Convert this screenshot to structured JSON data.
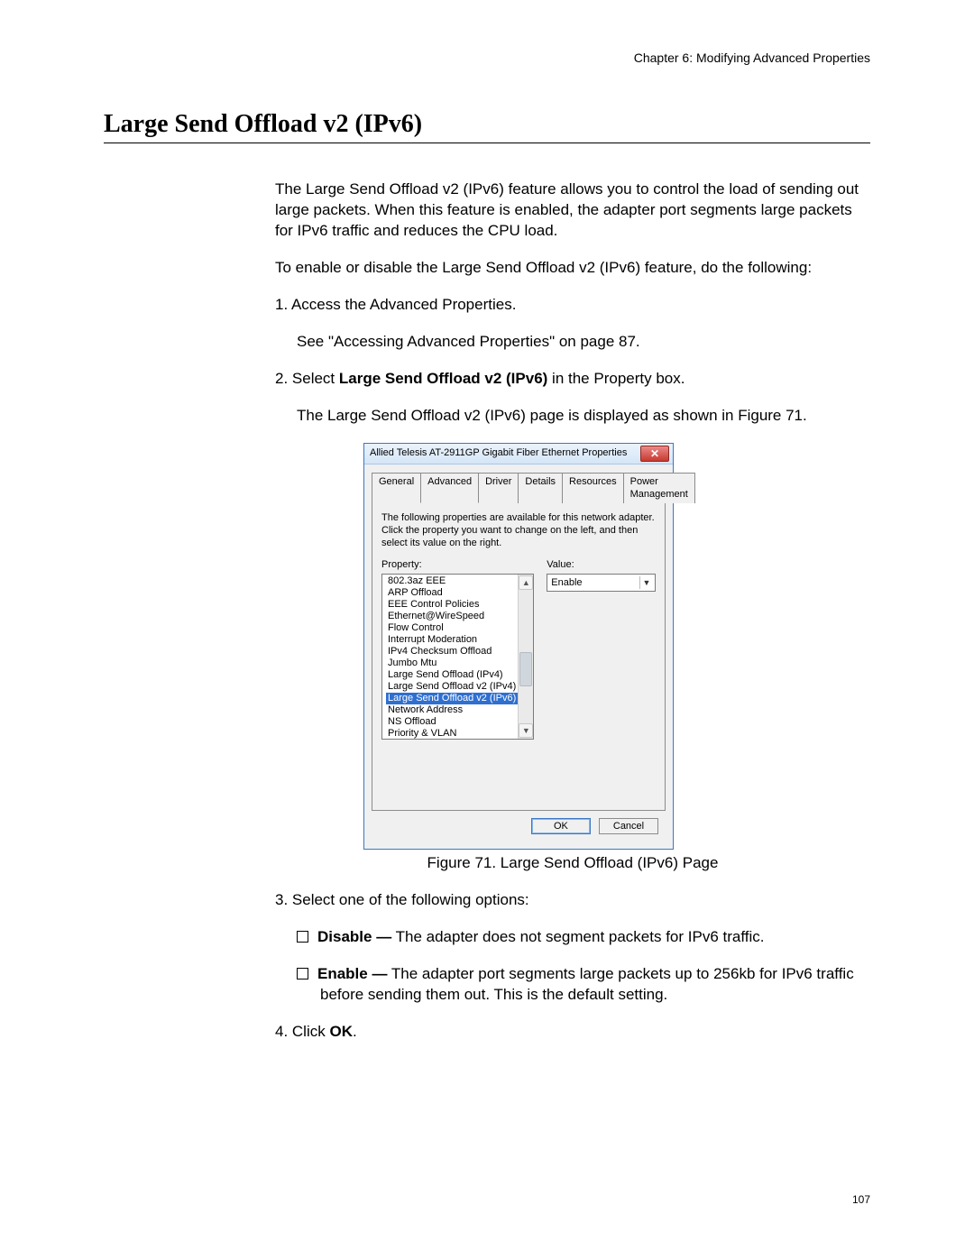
{
  "chapter_header": "Chapter 6: Modifying Advanced Properties",
  "section_title": "Large Send Offload v2 (IPv6)",
  "intro": "The Large Send Offload v2 (IPv6) feature allows you to control the load of sending out large packets. When this feature is enabled, the adapter port segments large packets for IPv6 traffic and reduces the CPU load.",
  "lead_in": "To enable or disable the Large Send Offload v2 (IPv6) feature, do the following:",
  "step1_text": "1.  Access the Advanced Properties.",
  "step1_ref": "See \"Accessing Advanced Properties\" on page 87.",
  "step2_pre": "2.  Select ",
  "step2_bold": "Large Send Offload v2 (IPv6)",
  "step2_post": " in the Property box.",
  "step2_result": "The Large Send Offload v2 (IPv6) page is displayed as shown in Figure 71.",
  "figure_caption": "Figure 71. Large Send Offload (IPv6) Page",
  "step3_text": "3.  Select one of the following options:",
  "opt_disable_label": "Disable —",
  "opt_disable_text": " The adapter does not segment packets for IPv6 traffic.",
  "opt_enable_label": "Enable —",
  "opt_enable_text": " The adapter port segments large packets up to 256kb for IPv6 traffic before sending them out. This is the default setting.",
  "step4_pre": "4.  Click ",
  "step4_bold": "OK",
  "step4_post": ".",
  "page_number": "107",
  "dialog": {
    "title": "Allied Telesis AT-2911GP Gigabit Fiber Ethernet Properties",
    "close_glyph": "✕",
    "tabs": {
      "t0": "General",
      "t1": "Advanced",
      "t2": "Driver",
      "t3": "Details",
      "t4": "Resources",
      "t5": "Power Management"
    },
    "description": "The following properties are available for this network adapter. Click the property you want to change on the left, and then select its value on the right.",
    "property_label": "Property:",
    "value_label": "Value:",
    "selected_value": "Enable",
    "properties": {
      "p0": "802.3az EEE",
      "p1": "ARP Offload",
      "p2": "EEE Control Policies",
      "p3": "Ethernet@WireSpeed",
      "p4": "Flow Control",
      "p5": "Interrupt Moderation",
      "p6": "IPv4 Checksum Offload",
      "p7": "Jumbo Mtu",
      "p8": "Large Send Offload (IPv4)",
      "p9": "Large Send Offload v2 (IPv4)",
      "p10": "Large Send Offload v2 (IPv6)",
      "p11": "Network Address",
      "p12": "NS Offload",
      "p13": "Priority & VLAN"
    },
    "scroll_up": "▲",
    "scroll_down": "▼",
    "ok_label": "OK",
    "cancel_label": "Cancel"
  }
}
